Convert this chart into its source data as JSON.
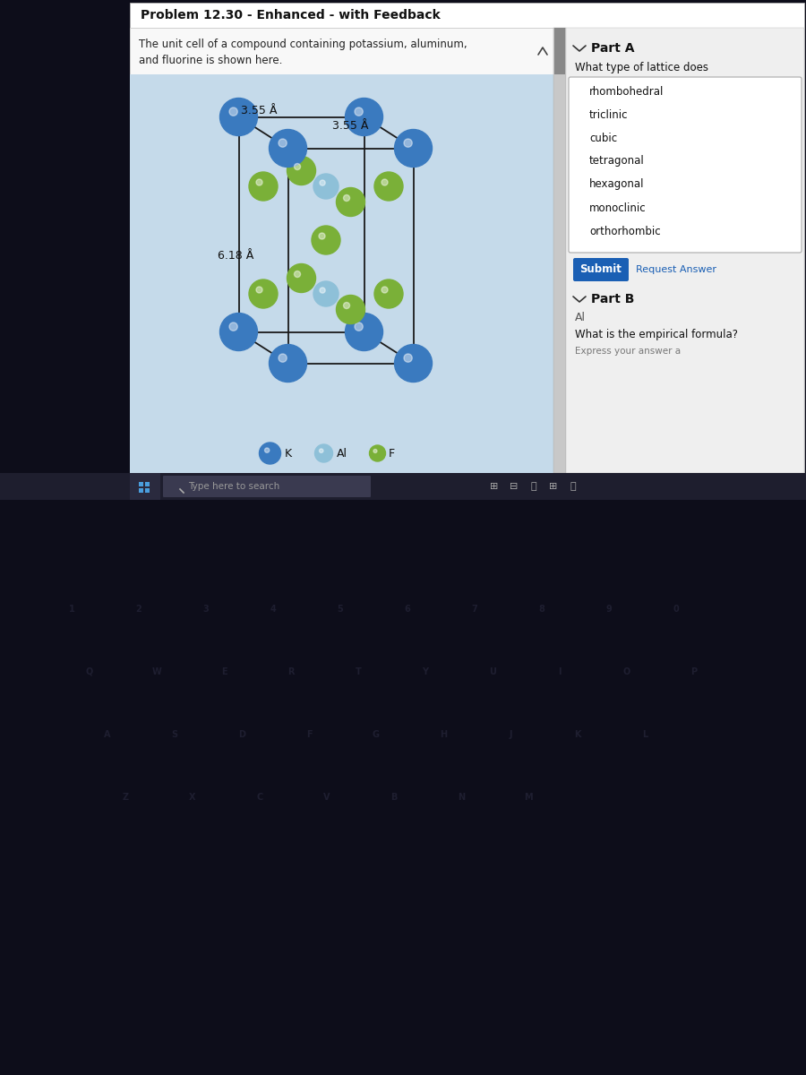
{
  "title": "Problem 12.30 - Enhanced - with Feedback",
  "problem_line1": "The unit cell of a compound containing potassium, aluminum,",
  "problem_line2": "and fluorine is shown here.",
  "dim_a1": "3.55 Å",
  "dim_a2": "3.55 Å",
  "dim_c": "6.18 Å",
  "part_a_title": "Part A",
  "part_a_question": "What type of lattice does",
  "part_a_options": [
    "rhombohedral",
    "triclinic",
    "cubic",
    "tetragonal",
    "hexagonal",
    "monoclinic",
    "orthorhombic"
  ],
  "submit_text": "Submit",
  "request_answer_text": "Request Answer",
  "part_b_title": "Part B",
  "part_b_question": "What is the empirical formula?",
  "part_b_subtext": "Express your answer a",
  "search_text": "Type here to search",
  "K_color": "#3a7abf",
  "Al_color": "#8ec0d8",
  "F_color": "#7ab038",
  "bg_dark": "#0d0d1a",
  "bg_panel": "#e8f0f8",
  "bg_crystal": "#c5daea",
  "bg_right": "#efefef",
  "bg_title": "#f5f5f5",
  "submit_color": "#1a5fb4",
  "taskbar_color": "#1e1e2e",
  "win_icon_color": "#4a9edd"
}
